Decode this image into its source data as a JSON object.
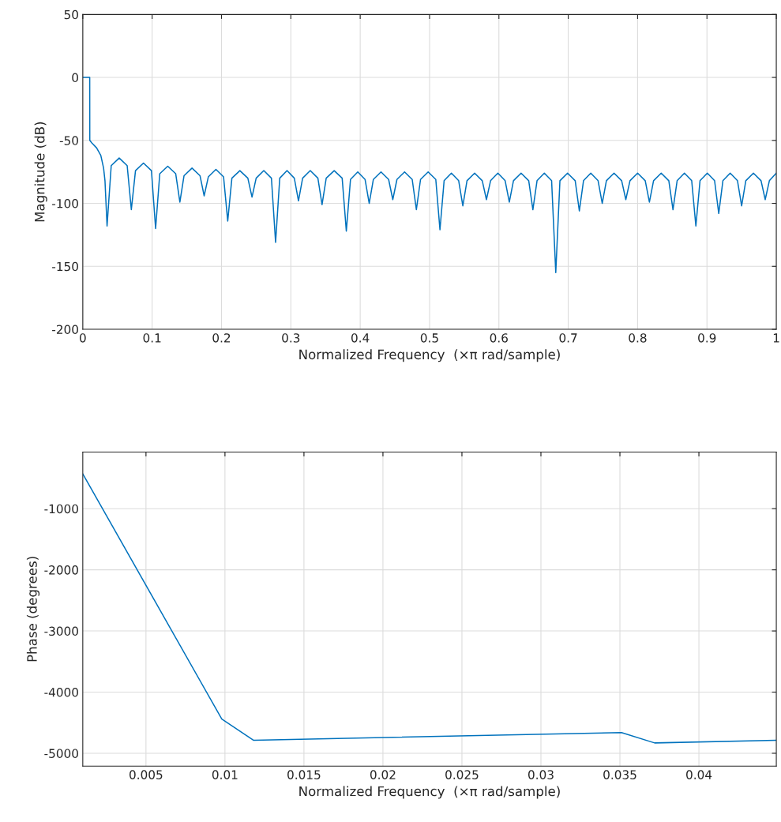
{
  "chart_data": [
    {
      "type": "line",
      "xlabel": "Normalized Frequency  (×π rad/sample)",
      "ylabel": "Magnitude (dB)",
      "grid": true,
      "xlim": [
        0,
        1
      ],
      "xticks": [
        0,
        0.1,
        0.2,
        0.3,
        0.4,
        0.5,
        0.6,
        0.7,
        0.8,
        0.9,
        1
      ],
      "ylim": [
        -200,
        50
      ],
      "yticks": [
        -200,
        -150,
        -100,
        -50,
        0,
        50
      ],
      "series": [
        {
          "color": "#0072bd",
          "x": [
            0,
            0.01,
            0.0101,
            0.013,
            0.02,
            0.026,
            0.03,
            0.032,
            0.035,
            0.041,
            0.0525,
            0.064,
            0.07,
            0.076,
            0.0875,
            0.099,
            0.105,
            0.111,
            0.1225,
            0.134,
            0.14,
            0.146,
            0.1575,
            0.169,
            0.175,
            0.181,
            0.192,
            0.203,
            0.209,
            0.215,
            0.2265,
            0.238,
            0.244,
            0.25,
            0.261,
            0.272,
            0.278,
            0.284,
            0.2945,
            0.305,
            0.311,
            0.317,
            0.328,
            0.339,
            0.345,
            0.351,
            0.3625,
            0.374,
            0.38,
            0.386,
            0.3965,
            0.407,
            0.413,
            0.419,
            0.43,
            0.441,
            0.447,
            0.453,
            0.464,
            0.475,
            0.481,
            0.487,
            0.498,
            0.509,
            0.515,
            0.521,
            0.5315,
            0.542,
            0.548,
            0.554,
            0.565,
            0.576,
            0.582,
            0.588,
            0.5985,
            0.609,
            0.615,
            0.621,
            0.632,
            0.643,
            0.649,
            0.655,
            0.6655,
            0.676,
            0.682,
            0.688,
            0.699,
            0.71,
            0.716,
            0.722,
            0.7325,
            0.743,
            0.749,
            0.755,
            0.766,
            0.777,
            0.783,
            0.789,
            0.8,
            0.811,
            0.817,
            0.823,
            0.834,
            0.845,
            0.851,
            0.857,
            0.8675,
            0.878,
            0.884,
            0.89,
            0.9005,
            0.911,
            0.917,
            0.923,
            0.9335,
            0.944,
            0.95,
            0.956,
            0.967,
            0.978,
            0.984,
            0.99,
            1
          ],
          "values": [
            0,
            0,
            -50,
            -52,
            -56,
            -62,
            -72,
            -82,
            -118,
            -70,
            -64,
            -70,
            -105,
            -74,
            -68,
            -74,
            -120,
            -76.5,
            -70.5,
            -76.5,
            -99,
            -78,
            -72,
            -78,
            -94,
            -79,
            -73,
            -79,
            -114,
            -80,
            -74,
            -80,
            -95,
            -80,
            -74,
            -80,
            -131,
            -80,
            -74,
            -80,
            -98,
            -80,
            -74,
            -80,
            -101,
            -80,
            -74,
            -80,
            -122,
            -81,
            -75,
            -81,
            -100,
            -81,
            -75,
            -81,
            -97,
            -81,
            -75,
            -81,
            -105,
            -81,
            -75,
            -81,
            -121,
            -82,
            -76,
            -82,
            -102,
            -82,
            -76,
            -82,
            -97,
            -82,
            -76,
            -82,
            -99,
            -82,
            -76,
            -82,
            -105,
            -82,
            -76,
            -82,
            -155,
            -82,
            -76,
            -82,
            -106,
            -82,
            -76,
            -82,
            -100,
            -82,
            -76,
            -82,
            -97,
            -82,
            -76,
            -82,
            -99,
            -82,
            -76,
            -82,
            -105,
            -82,
            -76,
            -82,
            -118,
            -82,
            -76,
            -82,
            -108,
            -82,
            -76,
            -82,
            -102,
            -82,
            -76,
            -82,
            -97,
            -82,
            -76
          ]
        }
      ]
    },
    {
      "type": "line",
      "xlabel": "Normalized Frequency  (×π rad/sample)",
      "ylabel": "Phase (degrees)",
      "grid": true,
      "xlim": [
        0.001,
        0.0449
      ],
      "xticks": [
        0.005,
        0.01,
        0.015,
        0.02,
        0.025,
        0.03,
        0.035,
        0.04
      ],
      "ylim": [
        -5210,
        -75
      ],
      "yticks": [
        -5000,
        -4000,
        -3000,
        -2000,
        -1000
      ],
      "series": [
        {
          "color": "#0072bd",
          "x": [
            0.001,
            0.0098,
            0.0118,
            0.0351,
            0.0372,
            0.0449
          ],
          "values": [
            -430,
            -4441,
            -4787,
            -4662,
            -4831,
            -4787
          ]
        }
      ]
    }
  ]
}
